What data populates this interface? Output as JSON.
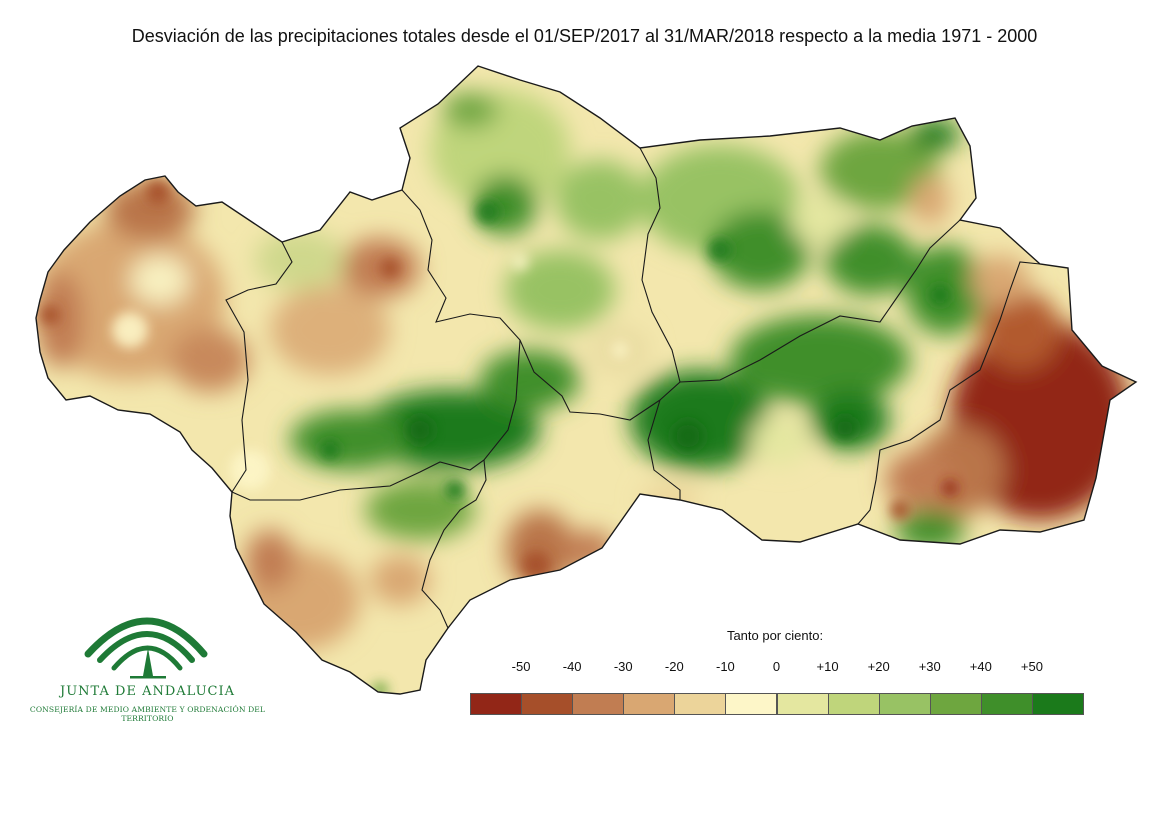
{
  "title": "Desviación de las precipitaciones totales desde el 01/SEP/2017 al 31/MAR/2018 respecto a la media 1971 - 2000",
  "logo": {
    "name": "JUNTA DE ANDALUCIA",
    "subtitle": "CONSEJERÍA DE MEDIO AMBIENTE Y ORDENACIÓN DEL TERRITORIO",
    "color": "#1e7a36"
  },
  "legend": {
    "title": "Tanto por ciento:",
    "ticks": [
      "-50",
      "-40",
      "-30",
      "-20",
      "-10",
      "0",
      "+10",
      "+20",
      "+30",
      "+40",
      "+50"
    ],
    "colors": [
      "#922617",
      "#a64f2a",
      "#c17d52",
      "#d9a772",
      "#ecd49a",
      "#fdf6c8",
      "#e4e7a0",
      "#bfd57b",
      "#98c264",
      "#6ea63f",
      "#3f8f2a",
      "#1b7a1b"
    ]
  }
}
